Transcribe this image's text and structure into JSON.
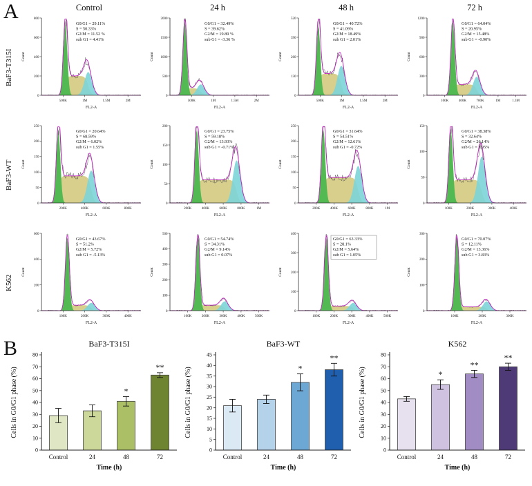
{
  "figure": {
    "panel_a_label": "A",
    "panel_b_label": "B",
    "col_headers": [
      "Control",
      "24 h",
      "48 h",
      "72 h"
    ],
    "row_labels": [
      "BaF3-T315I",
      "BaF3-WT",
      "K562"
    ],
    "axis": {
      "x_label": "FL2-A",
      "y_label": "Count"
    }
  },
  "histogram_colors": {
    "g1_fill": "#53b953",
    "s_fill": "#d7cf8b",
    "g2_fill": "#7cd4d8",
    "fit_line": "#c026c0",
    "data_line": "#555555"
  },
  "histograms": [
    {
      "cells": [
        {
          "stats": [
            "G0/G1 = 29.11%",
            "S = 50.33%",
            "G2/M = 11.52 %",
            "sub G1 = 4.41%"
          ],
          "yticks": [
            800,
            600,
            400,
            200,
            0
          ],
          "xticks": [
            "500K",
            "1M",
            "1.5M",
            "2M"
          ],
          "shape": {
            "g1": 0.24,
            "g2": 0.47,
            "g1_h": 0.92,
            "s_h": 0.25,
            "g2_h": 0.3
          },
          "boxed": false
        },
        {
          "stats": [
            "G0/G1 = 32.49%",
            "S = 39.62%",
            "G2/M = 19.89 %",
            "sub G1 = -3.36 %"
          ],
          "yticks": [
            2000,
            1500,
            1000,
            500,
            0
          ],
          "xticks": [
            "500K",
            "1M",
            "1.5M",
            "2M"
          ],
          "shape": {
            "g1": 0.15,
            "g2": 0.31,
            "g1_h": 0.95,
            "s_h": 0.09,
            "g2_h": 0.14
          },
          "boxed": false
        },
        {
          "stats": [
            "G0/G1 = 40.72%",
            "S = 41.09%",
            "G2/M = 18.49%",
            "sub G1 = 2.01%"
          ],
          "yticks": [
            520,
            390,
            260,
            130,
            0
          ],
          "xticks": [
            "500K",
            "1M",
            "1.5M",
            "2M"
          ],
          "shape": {
            "g1": 0.2,
            "g2": 0.43,
            "g1_h": 0.9,
            "s_h": 0.28,
            "g2_h": 0.38
          },
          "boxed": false
        },
        {
          "stats": [
            "G0/G1 = 64.04%",
            "S = 20.95%",
            "G2/M = 15.48%",
            "sub G1 = -0.90%"
          ],
          "yticks": [
            1200,
            900,
            600,
            300,
            0
          ],
          "xticks": [
            "100K",
            "400K",
            "700K",
            "1M",
            "1.3M"
          ],
          "shape": {
            "g1": 0.26,
            "g2": 0.5,
            "g1_h": 0.95,
            "s_h": 0.14,
            "g2_h": 0.24
          },
          "boxed": false
        }
      ]
    },
    {
      "cells": [
        {
          "stats": [
            "G0/G1 = 20.64%",
            "S = 68.59%",
            "G2/M = 6.02%",
            "sub G1 = 1.55%"
          ],
          "yticks": [
            250,
            200,
            150,
            100,
            50,
            0
          ],
          "xticks": [
            "200K",
            "400K",
            "600K",
            "800K"
          ],
          "shape": {
            "g1": 0.17,
            "g2": 0.5,
            "g1_h": 0.95,
            "s_h": 0.35,
            "g2_h": 0.42
          },
          "boxed": false
        },
        {
          "stats": [
            "G0/G1 = 23.75%",
            "S = 59.18%",
            "G2/M = 13.93%",
            "sub G1 = -0.71%"
          ],
          "yticks": [
            200,
            150,
            100,
            50,
            0
          ],
          "xticks": [
            "200K",
            "400K",
            "600K",
            "800K",
            "1M"
          ],
          "shape": {
            "g1": 0.27,
            "g2": 0.67,
            "g1_h": 0.95,
            "s_h": 0.3,
            "g2_h": 0.55
          },
          "boxed": false
        },
        {
          "stats": [
            "G0/G1 = 31.64%",
            "S = 54.51%",
            "G2/M = 12.61%",
            "sub G1 = -0.72%"
          ],
          "yticks": [
            250,
            200,
            150,
            100,
            50,
            0
          ],
          "xticks": [
            "200K",
            "400K",
            "600K",
            "800K",
            "1M"
          ],
          "shape": {
            "g1": 0.25,
            "g2": 0.6,
            "g1_h": 0.95,
            "s_h": 0.33,
            "g2_h": 0.48
          },
          "boxed": false
        },
        {
          "stats": [
            "G0/G1 = 38.38%",
            "S = 32.64%",
            "G2/M = 26.14%",
            "sub G1 = 3.95%"
          ],
          "yticks": [
            150,
            100,
            50,
            0
          ],
          "xticks": [
            "100K",
            "200K",
            "300K",
            "400K"
          ],
          "shape": {
            "g1": 0.24,
            "g2": 0.55,
            "g1_h": 0.93,
            "s_h": 0.3,
            "g2_h": 0.6
          },
          "boxed": false
        }
      ]
    },
    {
      "cells": [
        {
          "stats": [
            "G0/G1 = 43.67%",
            "S = 51.2%",
            "G2/M = 5.72%",
            "sub G1 = -5.13%"
          ],
          "yticks": [
            600,
            400,
            200,
            0
          ],
          "xticks": [
            "100K",
            "200K",
            "300K",
            "400K"
          ],
          "shape": {
            "g1": 0.26,
            "g2": 0.5,
            "g1_h": 0.95,
            "s_h": 0.07,
            "g2_h": 0.1
          },
          "boxed": false
        },
        {
          "stats": [
            "G0/G1 = 54.74%",
            "S = 34.31%",
            "G2/M = 9.14%",
            "sub G1 = 0.07%"
          ],
          "yticks": [
            500,
            400,
            300,
            200,
            100,
            0
          ],
          "xticks": [
            "100K",
            "200K",
            "300K",
            "400K",
            "500K"
          ],
          "shape": {
            "g1": 0.28,
            "g2": 0.55,
            "g1_h": 0.95,
            "s_h": 0.07,
            "g2_h": 0.12
          },
          "boxed": false
        },
        {
          "stats": [
            "G0/G1 = 63.33%",
            "S = 28.1%",
            "G2/M = 5.64%",
            "sub G1 = 1.05%"
          ],
          "yticks": [
            400,
            300,
            200,
            100,
            0
          ],
          "xticks": [
            "100K",
            "200K",
            "300K",
            "400K",
            "500K"
          ],
          "shape": {
            "g1": 0.28,
            "g2": 0.55,
            "g1_h": 0.95,
            "s_h": 0.06,
            "g2_h": 0.1
          },
          "boxed": true
        },
        {
          "stats": [
            "G0/G1 = 70.07%",
            "S = 12.11%",
            "G2/M = 13.36%",
            "sub G1 = 3.83%"
          ],
          "yticks": [
            300,
            200,
            100,
            0
          ],
          "xticks": [
            "100K",
            "200K",
            "300K"
          ],
          "shape": {
            "g1": 0.3,
            "g2": 0.6,
            "g1_h": 0.95,
            "s_h": 0.05,
            "g2_h": 0.12
          },
          "boxed": false
        }
      ]
    }
  ],
  "chart_data": [
    {
      "type": "bar",
      "title": "BaF3-T315I",
      "ylabel": "Cells in G0/G1 phase (%)",
      "xlabel": "Time (h)",
      "categories": [
        "Control",
        "24",
        "48",
        "72"
      ],
      "values": [
        29,
        33,
        41,
        63
      ],
      "errors": [
        6,
        5,
        4,
        2
      ],
      "significance": [
        "",
        "",
        "*",
        "**"
      ],
      "ylim": [
        0,
        80
      ],
      "ytick_step": 10,
      "colors": [
        "#dfe6c3",
        "#ccd89a",
        "#aabf66",
        "#6f8430"
      ]
    },
    {
      "type": "bar",
      "title": "BaF3-WT",
      "ylabel": "Cells in G0/G1 phase (%)",
      "xlabel": "Time (h)",
      "categories": [
        "Control",
        "24",
        "48",
        "72"
      ],
      "values": [
        21,
        24,
        32,
        38
      ],
      "errors": [
        3,
        2,
        4,
        3
      ],
      "significance": [
        "",
        "",
        "*",
        "**"
      ],
      "ylim": [
        0,
        45
      ],
      "ytick_step": 5,
      "colors": [
        "#dbe9f5",
        "#b4d3ea",
        "#6da7d4",
        "#1f5fae"
      ]
    },
    {
      "type": "bar",
      "title": "K562",
      "ylabel": "Cells in G0/G1 phase (%)",
      "xlabel": "Time (h)",
      "categories": [
        "Control",
        "24",
        "48",
        "72"
      ],
      "values": [
        43,
        55,
        64,
        70
      ],
      "errors": [
        2,
        4,
        3,
        3
      ],
      "significance": [
        "",
        "*",
        "**",
        "**"
      ],
      "ylim": [
        0,
        80
      ],
      "ytick_step": 10,
      "colors": [
        "#e7e1ef",
        "#cfc2e0",
        "#a18cc4",
        "#4d3a76"
      ]
    }
  ]
}
